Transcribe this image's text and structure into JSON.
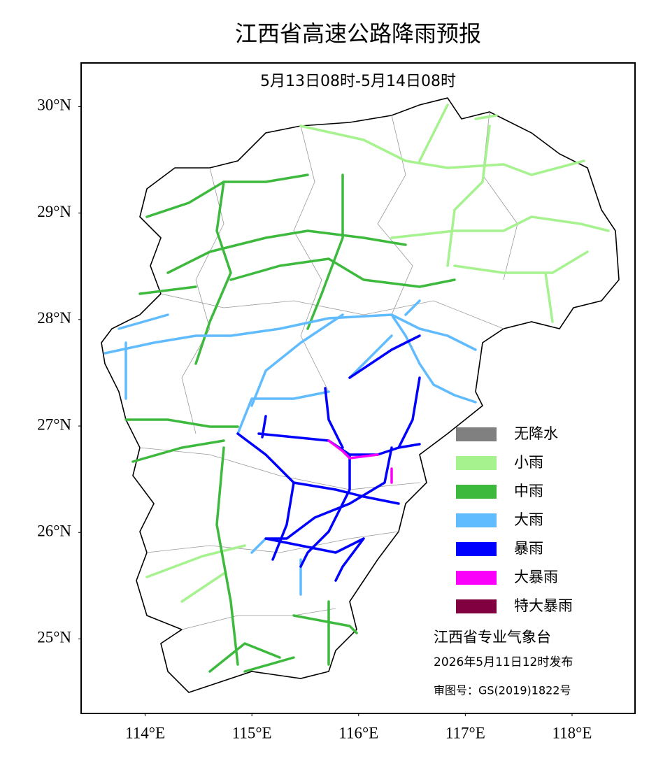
{
  "title": "江西省高速公路降雨预报",
  "subtitle": "5月13日08时-5月14日08时",
  "map": {
    "xlim": [
      113.4,
      118.59
    ],
    "ylim": [
      24.3,
      30.41
    ],
    "xticks": [
      {
        "value": 114,
        "label": "114°E"
      },
      {
        "value": 115,
        "label": "115°E"
      },
      {
        "value": 116,
        "label": "116°E"
      },
      {
        "value": 117,
        "label": "117°E"
      },
      {
        "value": 118,
        "label": "118°E"
      }
    ],
    "yticks": [
      {
        "value": 25,
        "label": "25°N"
      },
      {
        "value": 26,
        "label": "26°N"
      },
      {
        "value": 27,
        "label": "27°N"
      },
      {
        "value": 28,
        "label": "28°N"
      },
      {
        "value": 29,
        "label": "29°N"
      },
      {
        "value": 30,
        "label": "30°N"
      }
    ]
  },
  "legend": {
    "items": [
      {
        "label": "无降水",
        "color": "#808080"
      },
      {
        "label": "小雨",
        "color": "#a6f28f"
      },
      {
        "label": "中雨",
        "color": "#3dba3d"
      },
      {
        "label": "大雨",
        "color": "#61bbff"
      },
      {
        "label": "暴雨",
        "color": "#0000ff"
      },
      {
        "label": "大暴雨",
        "color": "#fa00fa"
      },
      {
        "label": "特大暴雨",
        "color": "#810040"
      }
    ]
  },
  "footer": {
    "agency": "江西省专业气象台",
    "issued": "2026年5月11日12时发布",
    "approval": "审图号：GS(2019)1822号"
  }
}
